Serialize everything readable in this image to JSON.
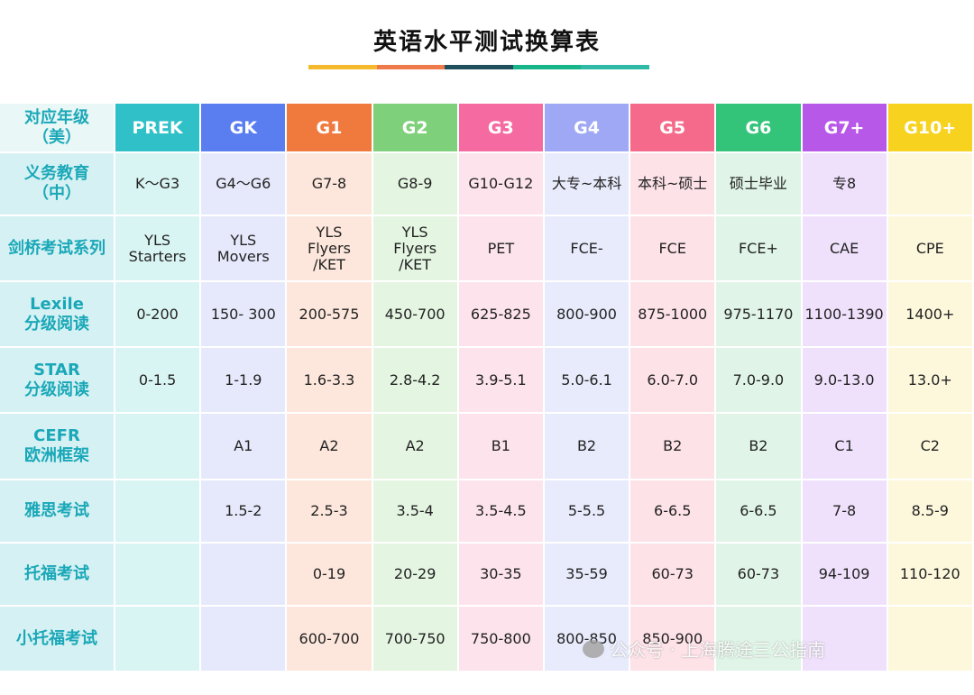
{
  "title": "英语水平测试换算表",
  "title_bar_colors": [
    "#f5b92d",
    "#ef7a4a",
    "#1f4e5c",
    "#18b48a",
    "#2fb9a6"
  ],
  "header": {
    "label": "对应年级\n（美）",
    "grades": [
      "PREK",
      "GK",
      "G1",
      "G2",
      "G3",
      "G4",
      "G5",
      "G6",
      "G7+",
      "G10+"
    ],
    "colors": [
      "#2fc0c8",
      "#5a7ef0",
      "#f07a3e",
      "#7ed07a",
      "#f56aa0",
      "#9ea8f4",
      "#f56a8a",
      "#33c47a",
      "#b858e8",
      "#f7d21f"
    ]
  },
  "column_tints": [
    "#d9f5f3",
    "#e6e9fb",
    "#fde7dc",
    "#e4f5e2",
    "#fde3ec",
    "#e8ebfb",
    "#fde2e8",
    "#e0f5e7",
    "#efe1fb",
    "#fdf8dc"
  ],
  "rows": [
    {
      "label": "义务教育\n（中）",
      "values": [
        "K～G3",
        "G4～G6",
        "G7-8",
        "G8-9",
        "G10-G12",
        "大专~本科",
        "本科~硕士",
        "硕士毕业",
        "专8",
        ""
      ]
    },
    {
      "label": "剑桥考试系列",
      "values": [
        "YLS\nStarters",
        "YLS\nMovers",
        "YLS\nFlyers\n/KET",
        "YLS\nFlyers\n/KET",
        "PET",
        "FCE-",
        "FCE",
        "FCE+",
        "CAE",
        "CPE"
      ]
    },
    {
      "label": "Lexile\n分级阅读",
      "values": [
        "0-200",
        "150- 300",
        "200-575",
        "450-700",
        "625-825",
        "800-900",
        "875-1000",
        "975-1170",
        "1100-1390",
        "1400+"
      ]
    },
    {
      "label": "STAR\n分级阅读",
      "values": [
        "0-1.5",
        "1-1.9",
        "1.6-3.3",
        "2.8-4.2",
        "3.9-5.1",
        "5.0-6.1",
        "6.0-7.0",
        "7.0-9.0",
        "9.0-13.0",
        "13.0+"
      ]
    },
    {
      "label": "CEFR\n欧洲框架",
      "values": [
        "",
        "A1",
        "A2",
        "A2",
        "B1",
        "B2",
        "B2",
        "B2",
        "C1",
        "C2"
      ]
    },
    {
      "label": "雅思考试",
      "values": [
        "",
        "1.5-2",
        "2.5-3",
        "3.5-4",
        "3.5-4.5",
        "5-5.5",
        "6-6.5",
        "6-6.5",
        "7-8",
        "8.5-9"
      ]
    },
    {
      "label": "托福考试",
      "values": [
        "",
        "",
        "0-19",
        "20-29",
        "30-35",
        "35-59",
        "60-73",
        "60-73",
        "94-109",
        "110-120"
      ]
    },
    {
      "label": "小托福考试",
      "values": [
        "",
        "",
        "600-700",
        "700-750",
        "750-800",
        "800-850",
        "850-900",
        "",
        "",
        ""
      ]
    }
  ],
  "watermark": "公众号 · 上海腾途三公指南"
}
